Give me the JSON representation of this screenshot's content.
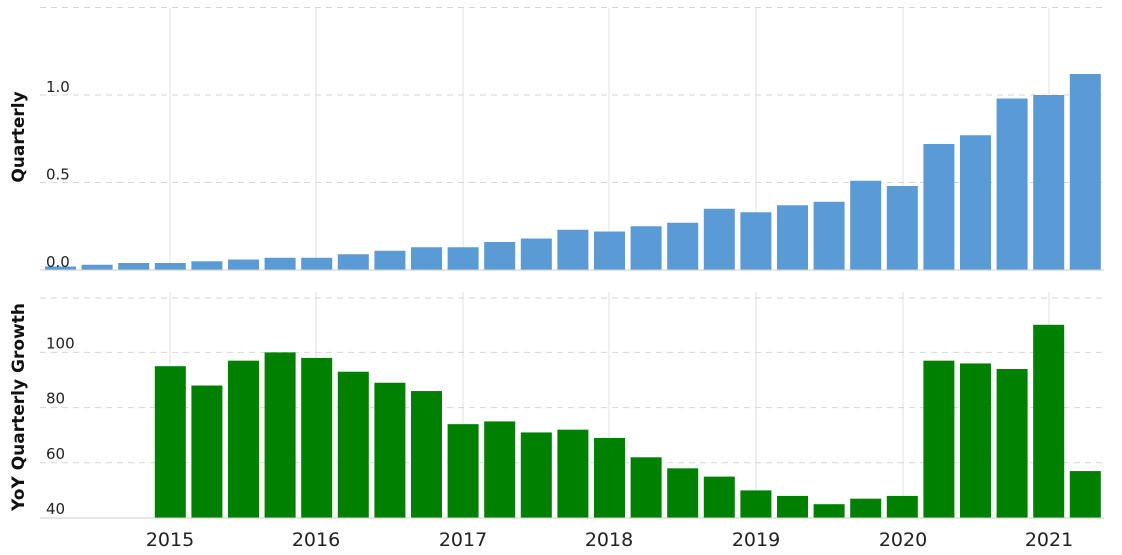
{
  "chart_data": [
    {
      "type": "bar",
      "ylabel": "Quarterly",
      "ylim": [
        0,
        1.5
      ],
      "yticks": [
        "0.0",
        "0.5",
        "1.0"
      ],
      "color": "#5b9bd5",
      "grid": true,
      "values": [
        0.02,
        0.03,
        0.04,
        0.04,
        0.05,
        0.06,
        0.07,
        0.07,
        0.09,
        0.11,
        0.13,
        0.13,
        0.16,
        0.18,
        0.23,
        0.22,
        0.25,
        0.27,
        0.35,
        0.33,
        0.37,
        0.39,
        0.51,
        0.48,
        0.72,
        0.77,
        0.98,
        1.0,
        1.12
      ]
    },
    {
      "type": "bar",
      "ylabel": "YoY Quarterly Growth",
      "ylim": [
        37,
        117
      ],
      "yticks": [
        "40",
        "60",
        "80",
        "100"
      ],
      "color": "#008000",
      "grid": true,
      "values": [
        null,
        null,
        null,
        95,
        88,
        97,
        100,
        98,
        93,
        89,
        86,
        74,
        75,
        71,
        72,
        69,
        62,
        58,
        55,
        50,
        48,
        45,
        47,
        48,
        97,
        96,
        94,
        110,
        57
      ]
    }
  ],
  "x_axis": {
    "years": [
      "2015",
      "2016",
      "2017",
      "2018",
      "2019",
      "2020",
      "2021"
    ]
  }
}
